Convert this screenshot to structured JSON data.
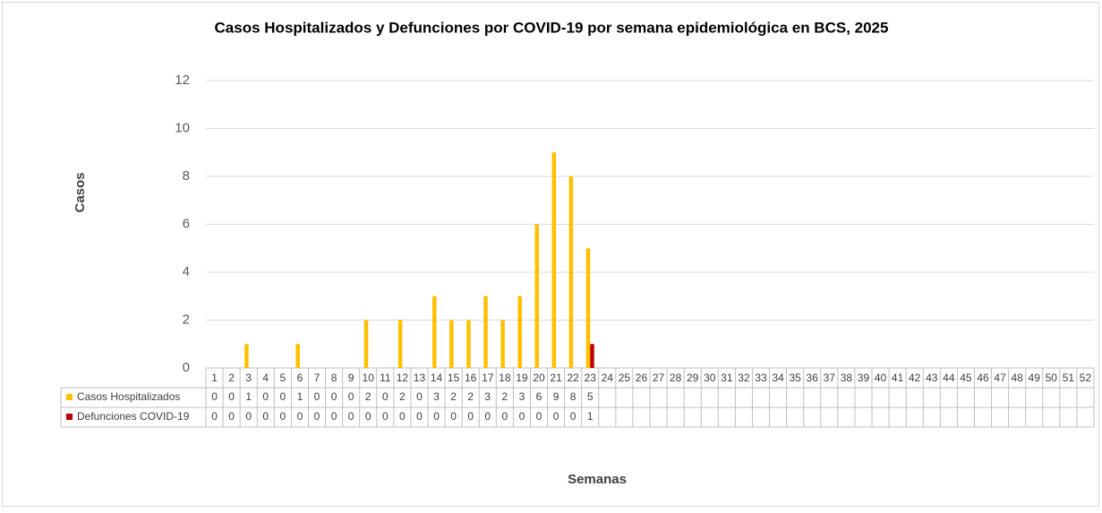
{
  "chart_data": {
    "type": "bar",
    "title": "Casos Hospitalizados  y Defunciones  por COVID-19 por semana epidemiológica  en BCS, 2025",
    "y_label": "Casos",
    "x_label": "Semanas",
    "categories": [
      "1",
      "2",
      "3",
      "4",
      "5",
      "6",
      "7",
      "8",
      "9",
      "10",
      "11",
      "12",
      "13",
      "14",
      "15",
      "16",
      "17",
      "18",
      "19",
      "20",
      "21",
      "22",
      "23",
      "24",
      "25",
      "26",
      "27",
      "28",
      "29",
      "30",
      "31",
      "32",
      "33",
      "34",
      "35",
      "36",
      "37",
      "38",
      "39",
      "40",
      "41",
      "42",
      "43",
      "44",
      "45",
      "46",
      "47",
      "48",
      "49",
      "50",
      "51",
      "52"
    ],
    "series": [
      {
        "name": "Casos Hospitalizados",
        "color": "#FFC000",
        "values": [
          0,
          0,
          1,
          0,
          0,
          1,
          0,
          0,
          0,
          2,
          0,
          2,
          0,
          3,
          2,
          2,
          3,
          2,
          3,
          6,
          9,
          8,
          5,
          null,
          null,
          null,
          null,
          null,
          null,
          null,
          null,
          null,
          null,
          null,
          null,
          null,
          null,
          null,
          null,
          null,
          null,
          null,
          null,
          null,
          null,
          null,
          null,
          null,
          null,
          null,
          null,
          null
        ]
      },
      {
        "name": "Defunciones COVID-19",
        "color": "#C00000",
        "values": [
          0,
          0,
          0,
          0,
          0,
          0,
          0,
          0,
          0,
          0,
          0,
          0,
          0,
          0,
          0,
          0,
          0,
          0,
          0,
          0,
          0,
          0,
          1,
          null,
          null,
          null,
          null,
          null,
          null,
          null,
          null,
          null,
          null,
          null,
          null,
          null,
          null,
          null,
          null,
          null,
          null,
          null,
          null,
          null,
          null,
          null,
          null,
          null,
          null,
          null,
          null,
          null
        ]
      }
    ],
    "ylim": [
      0,
      12
    ],
    "yticks": [
      0,
      2,
      4,
      6,
      8,
      10,
      12
    ],
    "grid": true
  }
}
